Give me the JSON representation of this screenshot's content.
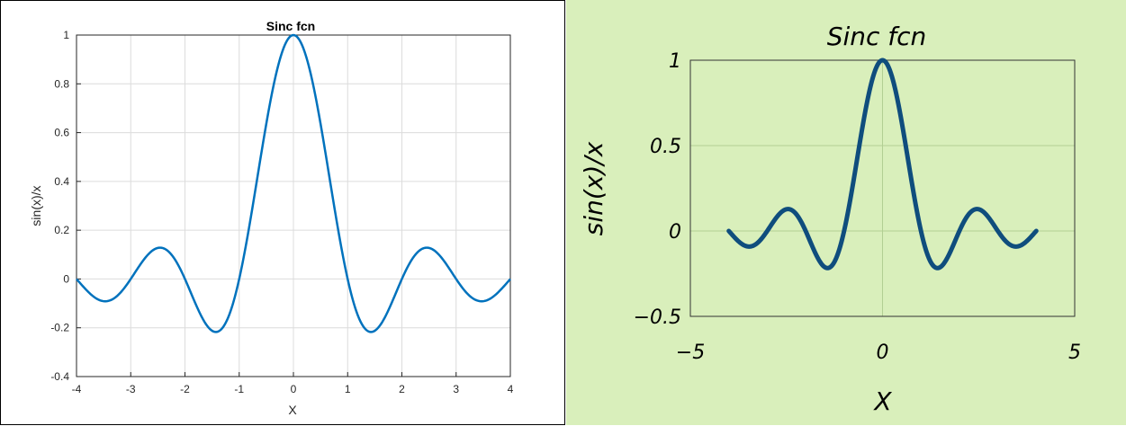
{
  "chart_data": [
    {
      "type": "line",
      "style": "matlab-default",
      "title": "Sinc fcn",
      "xlabel": "X",
      "ylabel": "sin(x)/x",
      "xlim": [
        -4,
        4
      ],
      "ylim": [
        -0.4,
        1
      ],
      "xticks": [
        "-4",
        "-3",
        "-2",
        "-1",
        "0",
        "1",
        "2",
        "3",
        "4"
      ],
      "yticks": [
        "-0.4",
        "-0.2",
        "0",
        "0.2",
        "0.4",
        "0.6",
        "0.8",
        "1"
      ],
      "grid": true,
      "line_color": "#0072bd",
      "function": "sin(pi*x)/(pi*x)",
      "x": [
        -4,
        -3.75,
        -3.5,
        -3.25,
        -3,
        -2.75,
        -2.5,
        -2.25,
        -2,
        -1.75,
        -1.5,
        -1.25,
        -1,
        -0.75,
        -0.5,
        -0.25,
        0,
        0.25,
        0.5,
        0.75,
        1,
        1.25,
        1.5,
        1.75,
        2,
        2.25,
        2.5,
        2.75,
        3,
        3.25,
        3.5,
        3.75,
        4
      ],
      "y": [
        0,
        -0.06,
        -0.09,
        -0.07,
        0,
        0.08,
        0.13,
        0.1,
        0,
        -0.13,
        -0.21,
        -0.18,
        0,
        0.3,
        0.64,
        0.9,
        1,
        0.9,
        0.64,
        0.3,
        0,
        -0.18,
        -0.21,
        -0.13,
        0,
        0.1,
        0.13,
        0.08,
        0,
        -0.07,
        -0.09,
        -0.06,
        0
      ]
    },
    {
      "type": "line",
      "style": "xkcd",
      "title": "Sinc fcn",
      "xlabel": "X",
      "ylabel": "sin(x)/x",
      "xlim": [
        -5,
        5
      ],
      "ylim": [
        -0.5,
        1
      ],
      "xticks": [
        "−5",
        "0",
        "5"
      ],
      "yticks": [
        "−0.5",
        "0",
        "0.5",
        "1"
      ],
      "grid": "zero-lines",
      "line_color": "#0f4d7d",
      "background": "#d9efbb",
      "function": "sin(pi*x)/(pi*x)",
      "x": [
        -4,
        -3.75,
        -3.5,
        -3.25,
        -3,
        -2.75,
        -2.5,
        -2.25,
        -2,
        -1.75,
        -1.5,
        -1.25,
        -1,
        -0.75,
        -0.5,
        -0.25,
        0,
        0.25,
        0.5,
        0.75,
        1,
        1.25,
        1.5,
        1.75,
        2,
        2.25,
        2.5,
        2.75,
        3,
        3.25,
        3.5,
        3.75,
        4
      ],
      "y": [
        0,
        -0.06,
        -0.09,
        -0.07,
        0,
        0.08,
        0.13,
        0.1,
        0,
        -0.13,
        -0.21,
        -0.18,
        0,
        0.3,
        0.64,
        0.9,
        1,
        0.9,
        0.64,
        0.3,
        0,
        -0.18,
        -0.21,
        -0.13,
        0,
        0.1,
        0.13,
        0.08,
        0,
        -0.07,
        -0.09,
        -0.06,
        0
      ]
    }
  ]
}
